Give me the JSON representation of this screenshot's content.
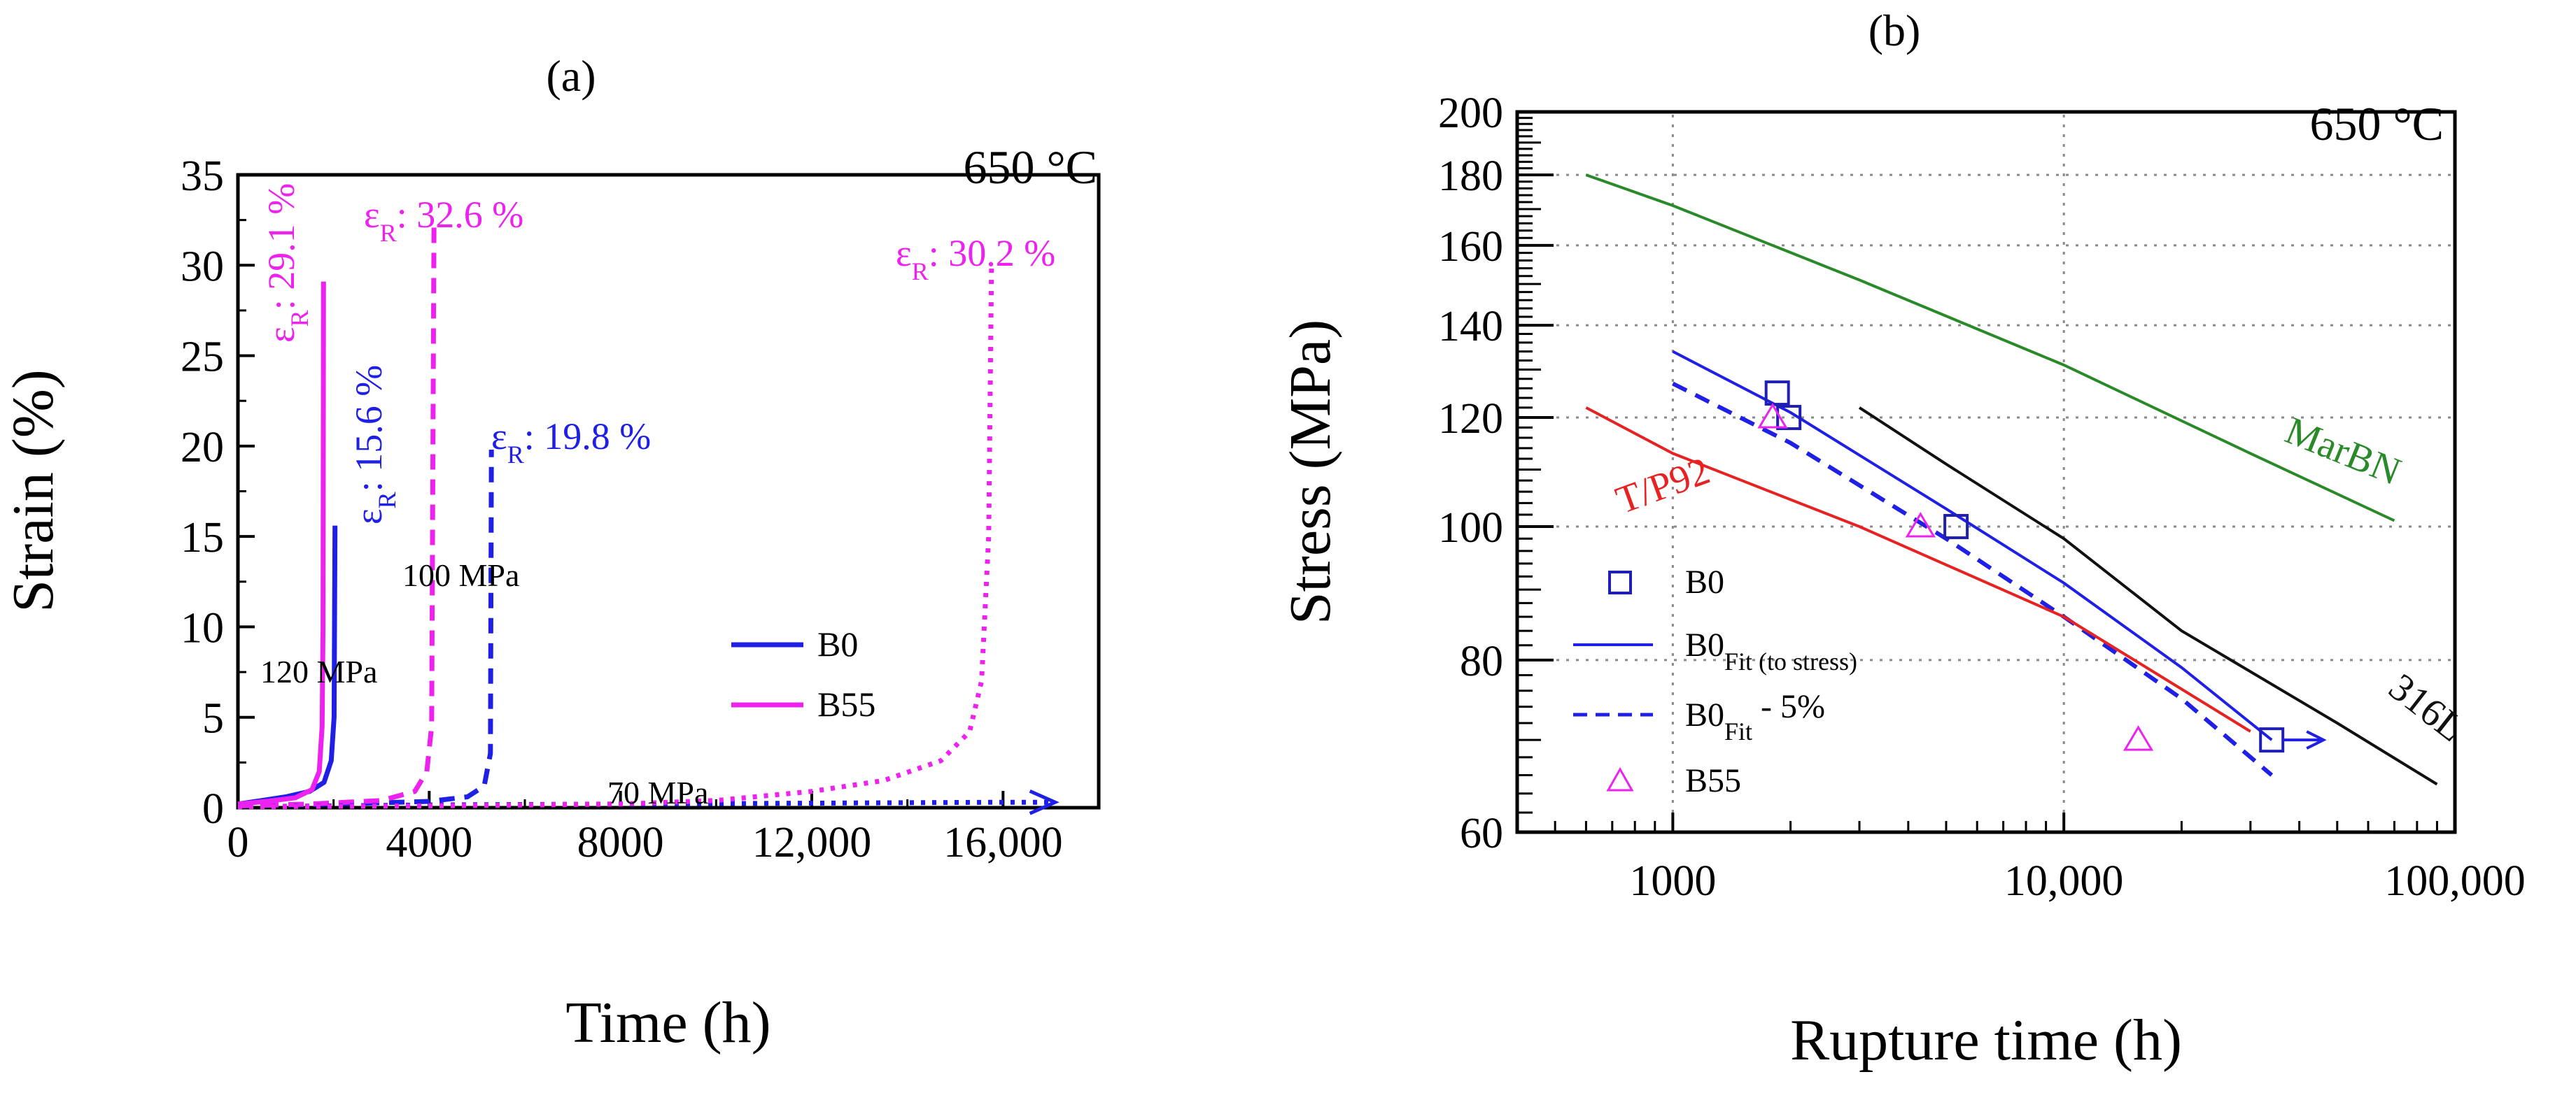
{
  "panel_a": {
    "label": "(a)",
    "temperature": "650 °C",
    "annotations": {
      "rupture_b55_120": "ε",
      "rupture_b55_120_sub": "R",
      "rupture_b55_120_val": ": 29.1 %",
      "rupture_b0_120_val": ": 15.6 %",
      "rupture_b55_100_val": ": 32.6 %",
      "rupture_b0_100_val": ": 19.8 %",
      "rupture_b55_70_val": ": 30.2 %",
      "stress_120": "120 MPa",
      "stress_100": "100 MPa",
      "stress_70": "70 MPa"
    },
    "legend": [
      "B0",
      "B55"
    ]
  },
  "panel_b": {
    "label": "(b)",
    "temperature": "650 °C",
    "curve_labels": {
      "marbn": "MarBN",
      "tp92": "T/P92",
      "l316": "316L"
    },
    "legend": {
      "b0": "B0",
      "fit_main": "B0",
      "fit_sub": "Fit (to stress)",
      "fit5_main": "B0",
      "fit5_sub": "Fit",
      "fit5_tail": " - 5%",
      "b55": "B55"
    }
  },
  "chart_data": [
    {
      "type": "line",
      "xlabel": "Time (h)",
      "ylabel": "Strain (%)",
      "xlim": [
        0,
        18000
      ],
      "ylim": [
        0,
        35
      ],
      "x_ticks": [
        0,
        4000,
        8000,
        12000,
        16000
      ],
      "x_tick_labels": [
        "0",
        "4000",
        "8000",
        "12,000",
        "16,000"
      ],
      "y_ticks": [
        0,
        5,
        10,
        15,
        20,
        25,
        30,
        35
      ],
      "grid": false,
      "legend_position": "bottom-right",
      "series": [
        {
          "name": "B0",
          "stress": "120 MPa",
          "style": "solid",
          "color": "#1f1fe6",
          "points": [
            [
              0,
              0.2
            ],
            [
              500,
              0.4
            ],
            [
              1000,
              0.6
            ],
            [
              1500,
              0.9
            ],
            [
              1800,
              1.4
            ],
            [
              1950,
              2.6
            ],
            [
              2010,
              5
            ],
            [
              2030,
              15.6
            ]
          ]
        },
        {
          "name": "B55",
          "stress": "120 MPa",
          "style": "solid",
          "color": "#ee22ee",
          "points": [
            [
              0,
              0.2
            ],
            [
              600,
              0.35
            ],
            [
              1200,
              0.55
            ],
            [
              1550,
              1.0
            ],
            [
              1700,
              2.0
            ],
            [
              1760,
              4.5
            ],
            [
              1780,
              10
            ],
            [
              1790,
              29.1
            ]
          ]
        },
        {
          "name": "B0",
          "stress": "100 MPa",
          "style": "dashed",
          "color": "#1f1fe6",
          "points": [
            [
              0,
              0.1
            ],
            [
              2000,
              0.2
            ],
            [
              4000,
              0.35
            ],
            [
              4800,
              0.6
            ],
            [
              5150,
              1.2
            ],
            [
              5280,
              3
            ],
            [
              5300,
              19.8
            ]
          ]
        },
        {
          "name": "B55",
          "stress": "100 MPa",
          "style": "dashed",
          "color": "#ee22ee",
          "points": [
            [
              0,
              0.1
            ],
            [
              1500,
              0.2
            ],
            [
              3000,
              0.4
            ],
            [
              3700,
              0.9
            ],
            [
              3950,
              2.0
            ],
            [
              4050,
              4.5
            ],
            [
              4100,
              32.6
            ]
          ]
        },
        {
          "name": "B0",
          "stress": "70 MPa",
          "style": "dotted",
          "color": "#1f1fe6",
          "points": [
            [
              0,
              0.05
            ],
            [
              4000,
              0.15
            ],
            [
              8000,
              0.2
            ],
            [
              12000,
              0.25
            ],
            [
              16000,
              0.3
            ],
            [
              17000,
              0.3
            ]
          ]
        },
        {
          "name": "B55",
          "stress": "70 MPa",
          "style": "dotted",
          "color": "#ee22ee",
          "points": [
            [
              0,
              0.05
            ],
            [
              4000,
              0.1
            ],
            [
              8000,
              0.2
            ],
            [
              10000,
              0.4
            ],
            [
              12000,
              0.9
            ],
            [
              13500,
              1.5
            ],
            [
              14700,
              2.6
            ],
            [
              15300,
              4.2
            ],
            [
              15550,
              7
            ],
            [
              15700,
              15
            ],
            [
              15760,
              30.2
            ]
          ]
        }
      ]
    },
    {
      "type": "scatter",
      "xlabel": "Rupture time (h)",
      "ylabel": "Stress (MPa)",
      "x_scale": "log",
      "y_scale": "log",
      "xlim": [
        400,
        100000
      ],
      "ylim": [
        60,
        200
      ],
      "x_ticks": [
        1000,
        10000,
        100000
      ],
      "x_tick_labels": [
        "1000",
        "10,000",
        "100,000"
      ],
      "y_ticks": [
        60,
        80,
        100,
        120,
        140,
        160,
        180,
        200
      ],
      "grid": true,
      "legend_position": "bottom-left",
      "series": [
        {
          "name": "B0",
          "marker": "square",
          "color": "#1f1fb4",
          "points": [
            [
              1850,
              125
            ],
            [
              1980,
              120
            ],
            [
              5300,
              100
            ],
            [
              34000,
              70
            ]
          ]
        },
        {
          "name": "B55",
          "marker": "triangle",
          "color": "#ee22ee",
          "points": [
            [
              1800,
              120
            ],
            [
              4300,
              100
            ],
            [
              15500,
              70
            ]
          ]
        },
        {
          "name": "B0 Fit (to stress)",
          "style": "solid",
          "color": "#1f1fe6",
          "points": [
            [
              1000,
              134
            ],
            [
              2000,
              121
            ],
            [
              5000,
              103
            ],
            [
              10000,
              91
            ],
            [
              20000,
              79
            ],
            [
              34000,
              70
            ]
          ]
        },
        {
          "name": "B0 Fit - 5%",
          "style": "dashed",
          "color": "#1f1fe6",
          "points": [
            [
              1000,
              127
            ],
            [
              2000,
              115
            ],
            [
              5000,
              98
            ],
            [
              10000,
              86
            ],
            [
              20000,
              75
            ],
            [
              34000,
              66
            ]
          ]
        },
        {
          "name": "T/P92",
          "style": "solid",
          "color": "#e62222",
          "points": [
            [
              600,
              122
            ],
            [
              1000,
              113
            ],
            [
              3000,
              100
            ],
            [
              10000,
              86
            ],
            [
              30000,
              71
            ]
          ]
        },
        {
          "name": "MarBN",
          "style": "solid",
          "color": "#2a8a2a",
          "points": [
            [
              600,
              180
            ],
            [
              1000,
              171
            ],
            [
              3000,
              151
            ],
            [
              10000,
              131
            ],
            [
              30000,
              113
            ],
            [
              70000,
              101
            ]
          ]
        },
        {
          "name": "316L",
          "style": "solid",
          "color": "#111111",
          "points": [
            [
              3000,
              122
            ],
            [
              5000,
              111
            ],
            [
              10000,
              98
            ],
            [
              20000,
              84
            ],
            [
              50000,
              72
            ],
            [
              90000,
              65
            ]
          ]
        }
      ]
    }
  ]
}
